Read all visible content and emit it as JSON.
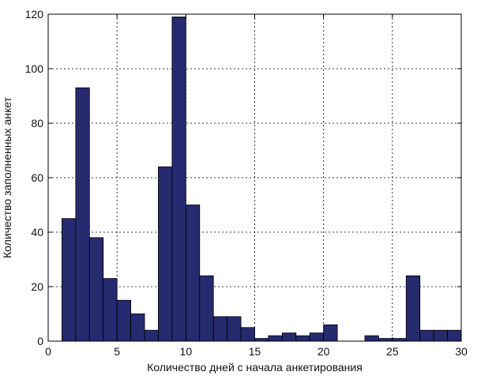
{
  "chart_data": {
    "type": "bar",
    "title": "",
    "xlabel": "Количество дней с начала анкетирования",
    "ylabel": "Количество заполненных анкет",
    "xlim": [
      0,
      30
    ],
    "ylim": [
      0,
      120
    ],
    "xticks": [
      0,
      5,
      10,
      15,
      20,
      25,
      30
    ],
    "yticks": [
      0,
      20,
      40,
      60,
      80,
      100,
      120
    ],
    "grid": true,
    "bar_color": "#262A6E",
    "bin_width": 1,
    "bins": [
      {
        "x": 1.5,
        "value": 45
      },
      {
        "x": 2.5,
        "value": 93
      },
      {
        "x": 3.5,
        "value": 38
      },
      {
        "x": 4.5,
        "value": 23
      },
      {
        "x": 5.5,
        "value": 15
      },
      {
        "x": 6.5,
        "value": 10
      },
      {
        "x": 7.5,
        "value": 4
      },
      {
        "x": 8.5,
        "value": 64
      },
      {
        "x": 9.5,
        "value": 119
      },
      {
        "x": 10.5,
        "value": 50
      },
      {
        "x": 11.5,
        "value": 24
      },
      {
        "x": 12.5,
        "value": 9
      },
      {
        "x": 13.5,
        "value": 9
      },
      {
        "x": 14.5,
        "value": 5
      },
      {
        "x": 15.5,
        "value": 1
      },
      {
        "x": 16.5,
        "value": 2
      },
      {
        "x": 17.5,
        "value": 3
      },
      {
        "x": 18.5,
        "value": 2
      },
      {
        "x": 19.5,
        "value": 3
      },
      {
        "x": 20.5,
        "value": 6
      },
      {
        "x": 23.5,
        "value": 2
      },
      {
        "x": 24.5,
        "value": 1
      },
      {
        "x": 25.5,
        "value": 1
      },
      {
        "x": 26.5,
        "value": 24
      },
      {
        "x": 27.5,
        "value": 4
      },
      {
        "x": 28.5,
        "value": 4
      },
      {
        "x": 29.5,
        "value": 4
      }
    ]
  }
}
